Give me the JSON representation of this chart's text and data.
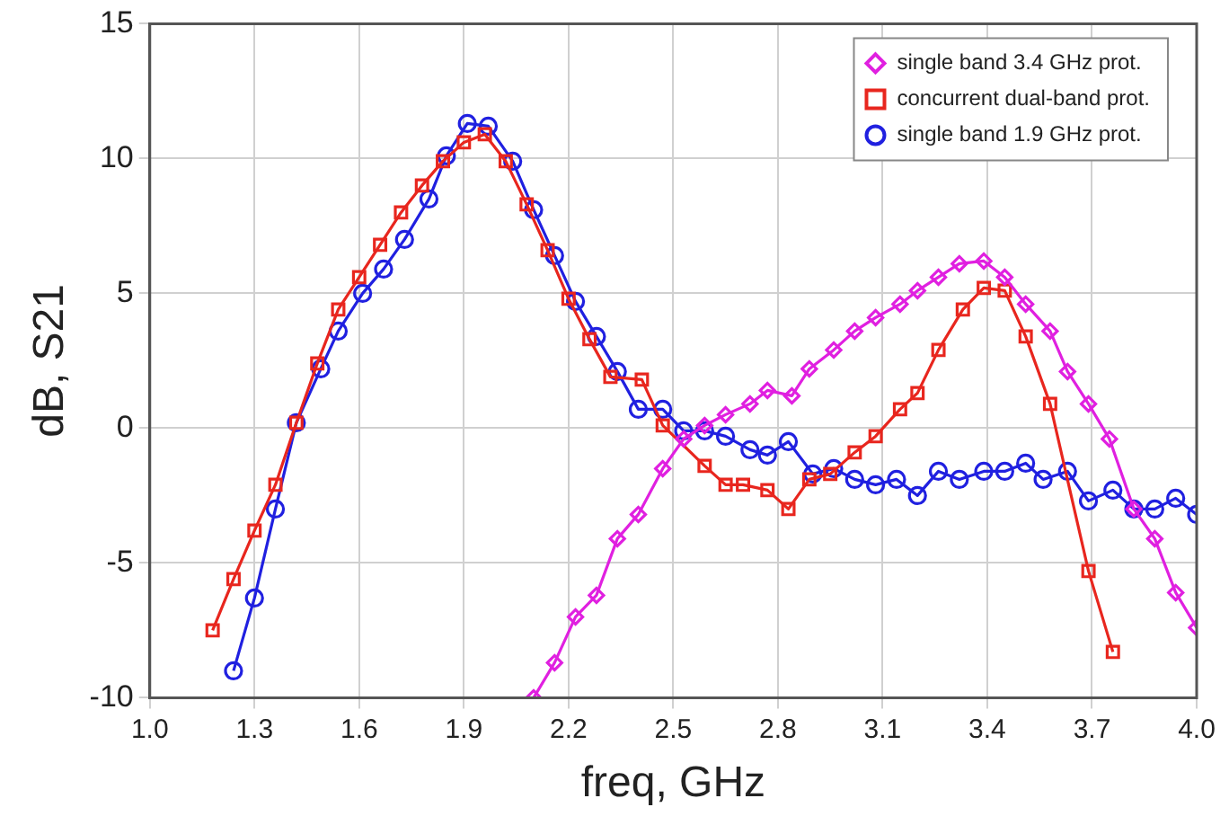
{
  "chart_data": {
    "type": "line",
    "xlabel": "freq, GHz",
    "ylabel": "dB, S21",
    "xlim": [
      1.0,
      4.0
    ],
    "ylim": [
      -10,
      15
    ],
    "xticks": [
      {
        "value": 1.0,
        "label": "1.0"
      },
      1.3,
      1.6,
      1.9,
      2.2,
      2.5,
      2.8,
      3.1,
      3.4,
      3.7,
      {
        "value": 4.0,
        "label": "4.0"
      }
    ],
    "yticks": [
      -10,
      -5,
      0,
      5,
      10,
      15
    ],
    "grid": true,
    "legend": "top right",
    "series": [
      {
        "name": "single band 3.4 GHz prot.",
        "color": "#e020e0",
        "marker": "diamond",
        "x": [
          2.1,
          2.16,
          2.22,
          2.28,
          2.34,
          2.4,
          2.47,
          2.53,
          2.59,
          2.65,
          2.72,
          2.77,
          2.84,
          2.89,
          2.96,
          3.02,
          3.08,
          3.15,
          3.2,
          3.26,
          3.32,
          3.39,
          3.45,
          3.51,
          3.58,
          3.63,
          3.69,
          3.75,
          3.82,
          3.88,
          3.94,
          4.0
        ],
        "values": [
          -10.0,
          -8.7,
          -7.0,
          -6.2,
          -4.1,
          -3.2,
          -1.5,
          -0.4,
          0.1,
          0.5,
          0.9,
          1.4,
          1.2,
          2.2,
          2.9,
          3.6,
          4.1,
          4.6,
          5.1,
          5.6,
          6.1,
          6.2,
          5.6,
          4.6,
          3.6,
          2.1,
          0.9,
          -0.4,
          -3.0,
          -4.1,
          -6.1,
          -7.4
        ]
      },
      {
        "name": "concurrent dual-band prot.",
        "color": "#e8261e",
        "marker": "square",
        "x": [
          1.18,
          1.24,
          1.3,
          1.36,
          1.42,
          1.48,
          1.54,
          1.6,
          1.66,
          1.72,
          1.78,
          1.84,
          1.9,
          1.96,
          2.02,
          2.08,
          2.14,
          2.2,
          2.26,
          2.32,
          2.41,
          2.47,
          2.59,
          2.65,
          2.7,
          2.77,
          2.83,
          2.89,
          2.95,
          3.02,
          3.08,
          3.15,
          3.2,
          3.26,
          3.33,
          3.39,
          3.45,
          3.51,
          3.58,
          3.69,
          3.76
        ],
        "values": [
          -7.5,
          -5.6,
          -3.8,
          -2.1,
          0.2,
          2.4,
          4.4,
          5.6,
          6.8,
          8.0,
          9.0,
          9.9,
          10.6,
          10.9,
          9.9,
          8.3,
          6.6,
          4.8,
          3.3,
          1.9,
          1.8,
          0.1,
          -1.4,
          -2.1,
          -2.1,
          -2.3,
          -3.0,
          -1.9,
          -1.7,
          -0.9,
          -0.3,
          0.7,
          1.3,
          2.9,
          4.4,
          5.2,
          5.1,
          3.4,
          0.9,
          -5.3,
          -8.3
        ]
      },
      {
        "name": "single band 1.9 GHz prot.",
        "color": "#2020e0",
        "marker": "circle",
        "x": [
          1.24,
          1.3,
          1.36,
          1.42,
          1.49,
          1.54,
          1.61,
          1.67,
          1.73,
          1.8,
          1.85,
          1.91,
          1.97,
          2.04,
          2.1,
          2.16,
          2.22,
          2.28,
          2.34,
          2.4,
          2.47,
          2.53,
          2.59,
          2.65,
          2.72,
          2.77,
          2.83,
          2.9,
          2.96,
          3.02,
          3.08,
          3.14,
          3.2,
          3.26,
          3.32,
          3.39,
          3.45,
          3.51,
          3.56,
          3.63,
          3.69,
          3.76,
          3.82,
          3.88,
          3.94,
          4.0
        ],
        "values": [
          -9.0,
          -6.3,
          -3.0,
          0.2,
          2.2,
          3.6,
          5.0,
          5.9,
          7.0,
          8.5,
          10.1,
          11.3,
          11.2,
          9.9,
          8.1,
          6.4,
          4.7,
          3.4,
          2.1,
          0.7,
          0.7,
          -0.1,
          -0.1,
          -0.3,
          -0.8,
          -1.0,
          -0.5,
          -1.7,
          -1.5,
          -1.9,
          -2.1,
          -1.9,
          -2.5,
          -1.6,
          -1.9,
          -1.6,
          -1.6,
          -1.3,
          -1.9,
          -1.6,
          -2.7,
          -2.3,
          -3.0,
          -3.0,
          -2.6,
          -3.2
        ]
      }
    ]
  }
}
